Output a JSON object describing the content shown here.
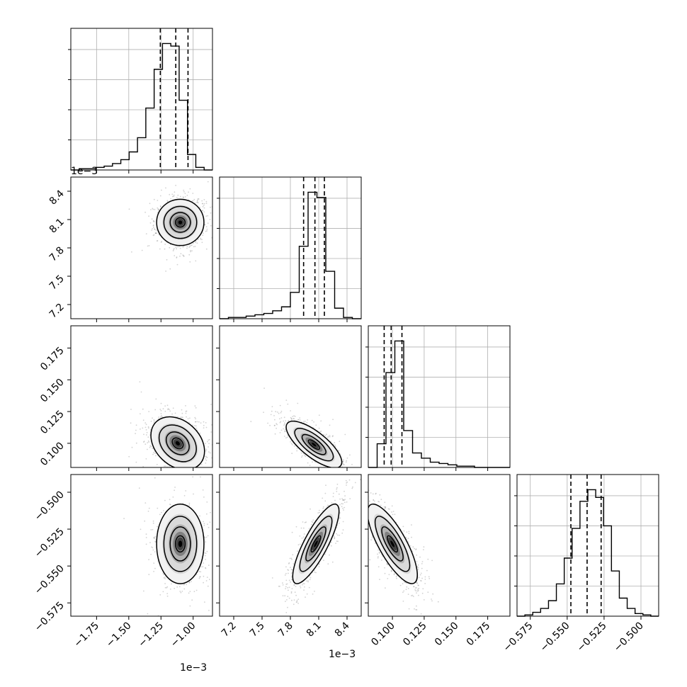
{
  "chart_data": {
    "type": "corner",
    "n_params": 4,
    "grid": true,
    "colors": {
      "hist": "#000000",
      "scatter": "#7f7f7f",
      "grid": "#b0b0b0"
    },
    "params": [
      {
        "range": [
          -1.95,
          -0.85
        ],
        "ticks": [
          -1.75,
          -1.5,
          -1.25,
          -1.0
        ],
        "tick_labels": [
          "−1.75",
          "−1.50",
          "−1.25",
          "−1.00"
        ],
        "offset": "1e−3",
        "quantiles": [
          -1.255,
          -1.135,
          -1.04
        ]
      },
      {
        "range": [
          7.05,
          8.55
        ],
        "ticks": [
          7.2,
          7.5,
          7.8,
          8.1,
          8.4
        ],
        "tick_labels": [
          "7.2",
          "7.5",
          "7.8",
          "8.1",
          "8.4"
        ],
        "offset": "1e−3",
        "quantiles": [
          7.94,
          8.06,
          8.16
        ]
      },
      {
        "range": [
          0.081,
          0.1925
        ],
        "ticks": [
          0.1,
          0.125,
          0.15,
          0.175
        ],
        "tick_labels": [
          "0.100",
          "0.125",
          "0.150",
          "0.175"
        ],
        "offset": "",
        "quantiles": [
          0.0935,
          0.099,
          0.1075
        ]
      },
      {
        "range": [
          -0.584,
          -0.488
        ],
        "ticks": [
          -0.575,
          -0.55,
          -0.525,
          -0.5
        ],
        "tick_labels": [
          "−0.575",
          "−0.550",
          "−0.525",
          "−0.500"
        ],
        "offset": "",
        "quantiles": [
          -0.5475,
          -0.5365,
          -0.527
        ]
      }
    ],
    "histograms": [
      {
        "param": 0,
        "counts": [
          0,
          1,
          1,
          2,
          3,
          5,
          8,
          14,
          25,
          48,
          78,
          98,
          96,
          54,
          12,
          2,
          0
        ]
      },
      {
        "param": 1,
        "counts": [
          0,
          1,
          1,
          2,
          3,
          4,
          6,
          9,
          20,
          55,
          96,
          92,
          36,
          8,
          1,
          0
        ]
      },
      {
        "param": 2,
        "counts": [
          0,
          18,
          72,
          96,
          28,
          11,
          7,
          4,
          3,
          2,
          1,
          1,
          0,
          0,
          0,
          0
        ]
      },
      {
        "param": 3,
        "counts": [
          0,
          1,
          3,
          6,
          12,
          25,
          45,
          68,
          89,
          98,
          92,
          70,
          35,
          14,
          6,
          2,
          1,
          0
        ]
      }
    ],
    "pairs": [
      {
        "x": 0,
        "y": 1,
        "center": [
          -1.1,
          8.07
        ],
        "sigma": [
          0.075,
          0.1
        ],
        "rho": 0.0
      },
      {
        "x": 0,
        "y": 2,
        "center": [
          -1.12,
          0.1
        ],
        "sigma": [
          0.085,
          0.0085
        ],
        "rho": -0.3
      },
      {
        "x": 0,
        "y": 3,
        "center": [
          -1.1,
          -0.535
        ],
        "sigma": [
          0.075,
          0.011
        ],
        "rho": 0.0
      },
      {
        "x": 1,
        "y": 2,
        "center": [
          8.05,
          0.099
        ],
        "sigma": [
          0.12,
          0.0075
        ],
        "rho": -0.75
      },
      {
        "x": 1,
        "y": 3,
        "center": [
          8.07,
          -0.535
        ],
        "sigma": [
          0.1,
          0.011
        ],
        "rho": 0.82
      },
      {
        "x": 2,
        "y": 3,
        "center": [
          0.1,
          -0.535
        ],
        "sigma": [
          0.008,
          0.011
        ],
        "rho": -0.78
      }
    ]
  }
}
